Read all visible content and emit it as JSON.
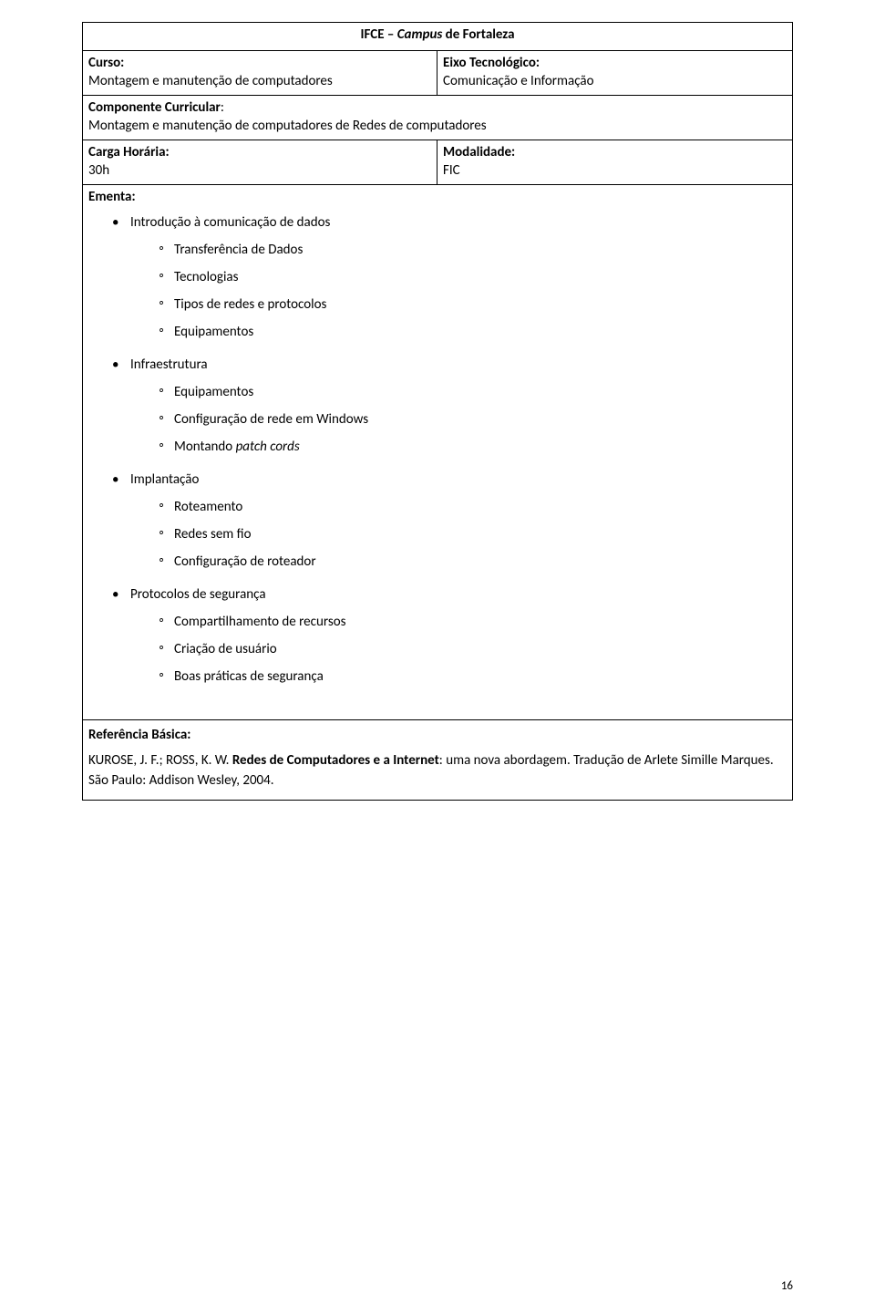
{
  "header": {
    "institution": "IFCE – ",
    "institution_italic": "Campus",
    "institution_tail": " de Fortaleza"
  },
  "curso": {
    "label": "Curso:",
    "value": "Montagem e manutenção de computadores"
  },
  "eixo": {
    "label": "Eixo Tecnológico:",
    "value": "Comunicação e Informação"
  },
  "componente": {
    "label": "Componente Curricular",
    "value": "Montagem e manutenção de computadores de Redes de computadores"
  },
  "carga": {
    "label": "Carga Horária:",
    "value": "30h"
  },
  "modalidade": {
    "label": "Modalidade:",
    "value": "FIC"
  },
  "ementa": {
    "label": "Ementa:",
    "items": [
      {
        "text": "Introdução à comunicação de dados",
        "sub": [
          "Transferência de Dados",
          "Tecnologias",
          "Tipos de redes e protocolos",
          "Equipamentos"
        ]
      },
      {
        "text": "Infraestrutura",
        "sub": [
          "Equipamentos",
          "Configuração de rede em Windows",
          {
            "pre": "Montando ",
            "it": "patch cords"
          }
        ]
      },
      {
        "text": "Implantação",
        "sub": [
          "Roteamento",
          "Redes sem fio",
          "Configuração de roteador"
        ]
      },
      {
        "text": "Protocolos de segurança",
        "sub": [
          "Compartilhamento de recursos",
          "Criação de usuário",
          "Boas práticas de segurança"
        ]
      }
    ]
  },
  "referencia": {
    "label": "Referência Básica:",
    "author": "KUROSE, J. F.; ROSS, K. W. ",
    "title_bold": "Redes de Computadores e a Internet",
    "tail": ": uma nova abordagem. Tradução de Arlete Simille Marques. São Paulo: Addison Wesley, 2004."
  },
  "page_number": "16"
}
